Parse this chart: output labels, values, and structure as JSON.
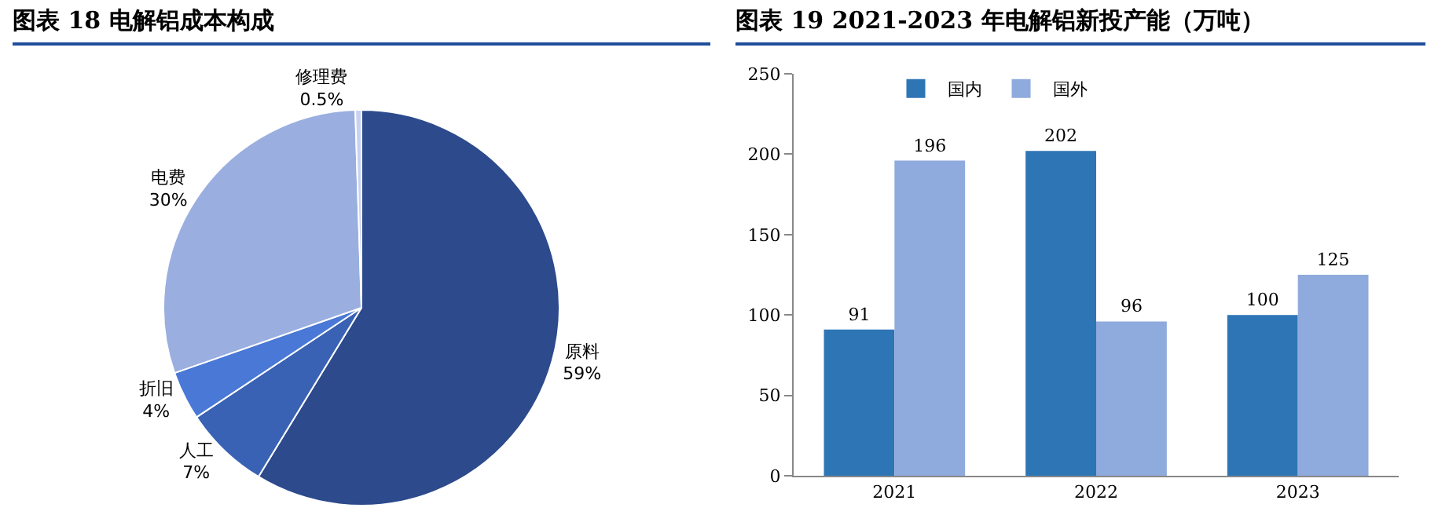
{
  "chart_data": [
    {
      "type": "pie",
      "title": "图表 18  电解铝成本构成",
      "categories": [
        "原料",
        "人工",
        "折旧",
        "电费",
        "修理费"
      ],
      "values": [
        59,
        7,
        4,
        30,
        0.5
      ],
      "value_labels": [
        "59%",
        "7%",
        "4%",
        "30%",
        "0.5%"
      ],
      "colors": [
        "#2c4a8c",
        "#3a62b4",
        "#4a78d6",
        "#9aaee0",
        "#c8d2ef"
      ],
      "legend": false
    },
    {
      "type": "bar",
      "title": "图表 19  2021-2023 年电解铝新投产能（万吨）",
      "categories": [
        "2021",
        "2022",
        "2023"
      ],
      "series": [
        {
          "name": "国内",
          "color": "#2e75b6",
          "values": [
            91,
            202,
            100
          ]
        },
        {
          "name": "国外",
          "color": "#8faadc",
          "values": [
            196,
            96,
            125
          ]
        }
      ],
      "ylim": [
        0,
        250
      ],
      "yticks": [
        0,
        50,
        100,
        150,
        200,
        250
      ],
      "data_labels": true,
      "grid": false,
      "legend": "top left"
    }
  ]
}
